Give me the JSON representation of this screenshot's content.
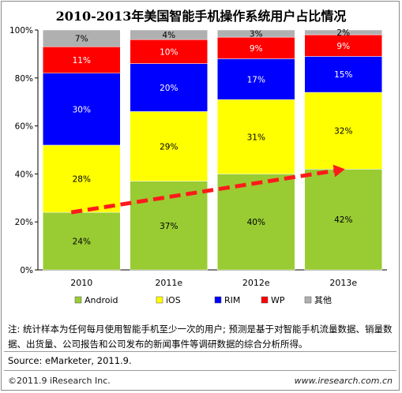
{
  "chart_data": {
    "type": "bar",
    "stacked": true,
    "title": "2010-2013年美国智能手机操作系统用户占比情况",
    "categories": [
      "2010",
      "2011e",
      "2012e",
      "2013e"
    ],
    "ylim": [
      0,
      100
    ],
    "yticks": [
      "0%",
      "20%",
      "40%",
      "60%",
      "80%",
      "100%"
    ],
    "series": [
      {
        "name": "Android",
        "color": "#99cc33",
        "values": [
          24,
          37,
          40,
          42
        ]
      },
      {
        "name": "iOS",
        "color": "#ffff00",
        "values": [
          28,
          29,
          31,
          32
        ]
      },
      {
        "name": "RIM",
        "color": "#0000ff",
        "values": [
          30,
          20,
          17,
          15
        ]
      },
      {
        "name": "WP",
        "color": "#ff0000",
        "values": [
          11,
          10,
          9,
          9
        ]
      },
      {
        "name": "其他",
        "color": "#b0b0b0",
        "values": [
          7,
          4,
          3,
          2
        ]
      }
    ],
    "grid": false,
    "legend": "bottom",
    "annotation": "dashed red trend arrow over Android segments"
  },
  "footer": {
    "note": "注: 统计样本为任何每月使用智能手机至少一次的用户; 预测是基于对智能手机流量数据、销量数据、出货量、公司报告和公司发布的新闻事件等调研数据的综合分析所得。",
    "source": "Source: eMarketer, 2011.9.",
    "copyright": "©2011.9 iResearch Inc.",
    "website": "www.iresearch.com.cn"
  }
}
